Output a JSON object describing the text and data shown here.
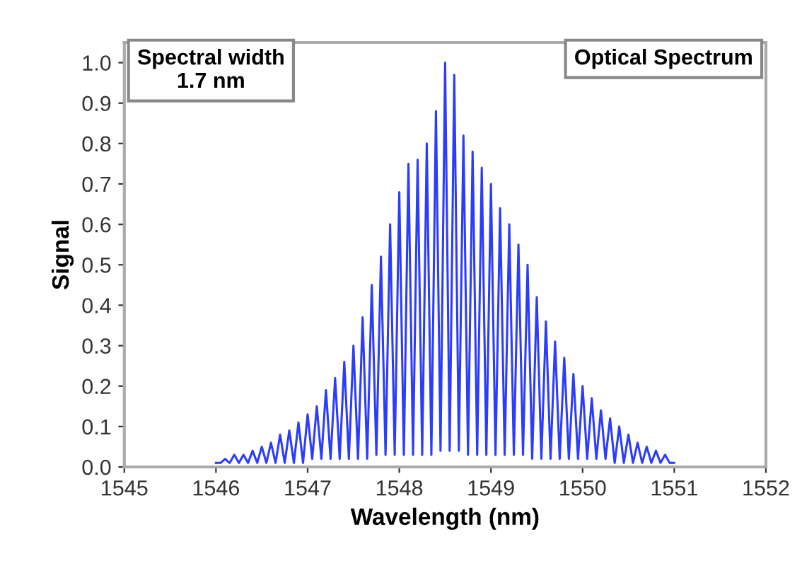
{
  "chart_data": {
    "type": "line",
    "xlabel": "Wavelength (nm)",
    "ylabel": "Signal",
    "annotations": [
      "Spectral width\n1.7 nm",
      "Optical Spectrum"
    ],
    "xlim": [
      1545,
      1552
    ],
    "xticks": [
      1545,
      1546,
      1547,
      1548,
      1549,
      1550,
      1551,
      1552
    ],
    "ylim": [
      0,
      1.05
    ],
    "yticks": [
      {
        "value": 0,
        "label": "0.0"
      },
      0.1,
      0.2,
      0.3,
      0.4,
      0.5,
      0.6,
      0.7,
      0.8,
      0.9,
      {
        "value": 1,
        "label": "1.0"
      }
    ],
    "grid": false,
    "marker": "none",
    "line_style": "solid",
    "series": [
      {
        "color": "#2b3cff",
        "x": [
          1546.0,
          1546.05,
          1546.1,
          1546.15,
          1546.2,
          1546.25,
          1546.3,
          1546.35,
          1546.4,
          1546.45,
          1546.5,
          1546.55,
          1546.6,
          1546.65,
          1546.7,
          1546.75,
          1546.8,
          1546.85,
          1546.9,
          1546.95,
          1547.0,
          1547.05,
          1547.1,
          1547.15,
          1547.2,
          1547.25,
          1547.3,
          1547.35,
          1547.4,
          1547.45,
          1547.5,
          1547.55,
          1547.6,
          1547.65,
          1547.7,
          1547.75,
          1547.8,
          1547.85,
          1547.9,
          1547.95,
          1548.0,
          1548.05,
          1548.1,
          1548.15,
          1548.2,
          1548.25,
          1548.3,
          1548.35,
          1548.4,
          1548.45,
          1548.5,
          1548.55,
          1548.6,
          1548.65,
          1548.7,
          1548.75,
          1548.8,
          1548.85,
          1548.9,
          1548.95,
          1549.0,
          1549.05,
          1549.1,
          1549.15,
          1549.2,
          1549.25,
          1549.3,
          1549.35,
          1549.4,
          1549.45,
          1549.5,
          1549.55,
          1549.6,
          1549.65,
          1549.7,
          1549.75,
          1549.8,
          1549.85,
          1549.9,
          1549.95,
          1550.0,
          1550.05,
          1550.1,
          1550.15,
          1550.2,
          1550.25,
          1550.3,
          1550.35,
          1550.4,
          1550.45,
          1550.5,
          1550.55,
          1550.6,
          1550.65,
          1550.7,
          1550.75,
          1550.8,
          1550.85,
          1550.9,
          1550.95,
          1551.0
        ],
        "values": [
          0.01,
          0.01,
          0.02,
          0.01,
          0.03,
          0.01,
          0.03,
          0.01,
          0.04,
          0.01,
          0.05,
          0.01,
          0.06,
          0.01,
          0.08,
          0.01,
          0.09,
          0.01,
          0.11,
          0.01,
          0.13,
          0.02,
          0.15,
          0.02,
          0.19,
          0.02,
          0.22,
          0.02,
          0.26,
          0.02,
          0.3,
          0.02,
          0.37,
          0.02,
          0.45,
          0.03,
          0.52,
          0.03,
          0.6,
          0.03,
          0.68,
          0.03,
          0.75,
          0.03,
          0.76,
          0.03,
          0.8,
          0.03,
          0.88,
          0.04,
          1.0,
          0.04,
          0.97,
          0.04,
          0.82,
          0.03,
          0.78,
          0.03,
          0.74,
          0.03,
          0.7,
          0.03,
          0.64,
          0.03,
          0.6,
          0.03,
          0.55,
          0.03,
          0.5,
          0.02,
          0.42,
          0.02,
          0.36,
          0.02,
          0.31,
          0.02,
          0.27,
          0.02,
          0.23,
          0.02,
          0.2,
          0.02,
          0.17,
          0.02,
          0.14,
          0.02,
          0.12,
          0.01,
          0.1,
          0.01,
          0.08,
          0.01,
          0.06,
          0.01,
          0.05,
          0.01,
          0.04,
          0.01,
          0.03,
          0.01,
          0.01
        ]
      }
    ]
  }
}
